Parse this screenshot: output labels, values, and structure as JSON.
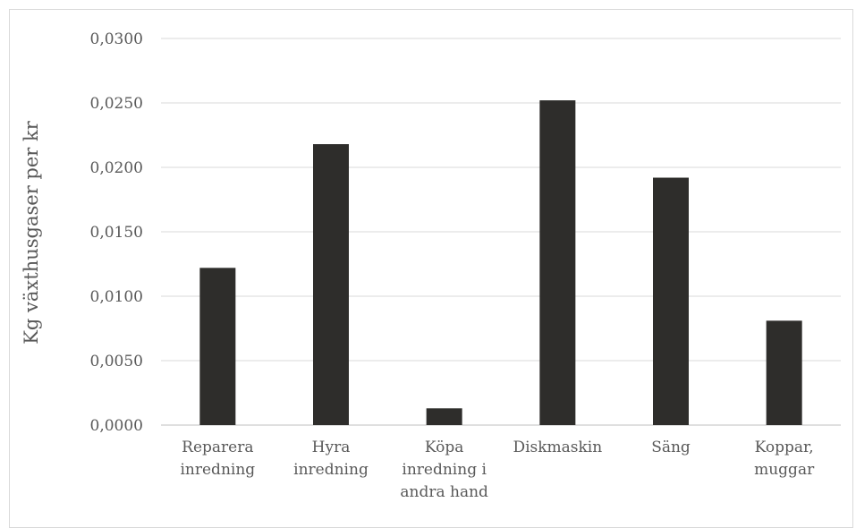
{
  "chart_data": {
    "type": "bar",
    "title": "",
    "xlabel": "",
    "ylabel": "Kg växthusgaser per kr",
    "categories": [
      [
        "Reparera",
        "inredning"
      ],
      [
        "Hyra",
        "inredning"
      ],
      [
        "Köpa",
        "inredning i",
        "andra hand"
      ],
      [
        "Diskmaskin"
      ],
      [
        "Säng"
      ],
      [
        "Koppar,",
        "muggar"
      ]
    ],
    "values": [
      0.0122,
      0.0218,
      0.0013,
      0.0252,
      0.0192,
      0.0081
    ],
    "ylim": [
      0,
      0.03
    ],
    "yticks": [
      "0,0000",
      "0,0050",
      "0,0100",
      "0,0150",
      "0,0200",
      "0,0250",
      "0,0300"
    ],
    "grid": true,
    "legend": "none",
    "colors": {
      "bar": "#2e2d2b",
      "grid": "#d9d9d9",
      "text": "#595959"
    }
  }
}
